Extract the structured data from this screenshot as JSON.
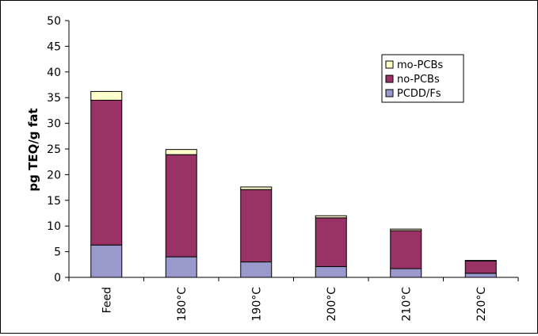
{
  "chart_data": {
    "type": "bar",
    "stacked": true,
    "categories": [
      "Feed",
      "180°C",
      "190°C",
      "200°C",
      "210°C",
      "220°C"
    ],
    "series": [
      {
        "name": "PCDD/Fs",
        "color": "#9999cc",
        "values": [
          6.3,
          4.0,
          3.0,
          2.1,
          1.7,
          0.8
        ]
      },
      {
        "name": "no-PCBs",
        "color": "#993366",
        "values": [
          28.2,
          19.9,
          14.1,
          9.5,
          7.4,
          2.4
        ]
      },
      {
        "name": "mo-PCBs",
        "color": "#ffffcc",
        "values": [
          1.7,
          1.0,
          0.5,
          0.4,
          0.3,
          0.1
        ]
      }
    ],
    "ylabel": "pg TEQ/g fat",
    "xlabel": "",
    "ylim": [
      0,
      50
    ],
    "yticks": [
      "0",
      "5",
      "10",
      "15",
      "20",
      "25",
      "30",
      "35",
      "40",
      "45",
      "50"
    ],
    "legend": {
      "position": "top-right",
      "order": [
        "mo-PCBs",
        "no-PCBs",
        "PCDD/Fs"
      ]
    },
    "grid": false
  }
}
